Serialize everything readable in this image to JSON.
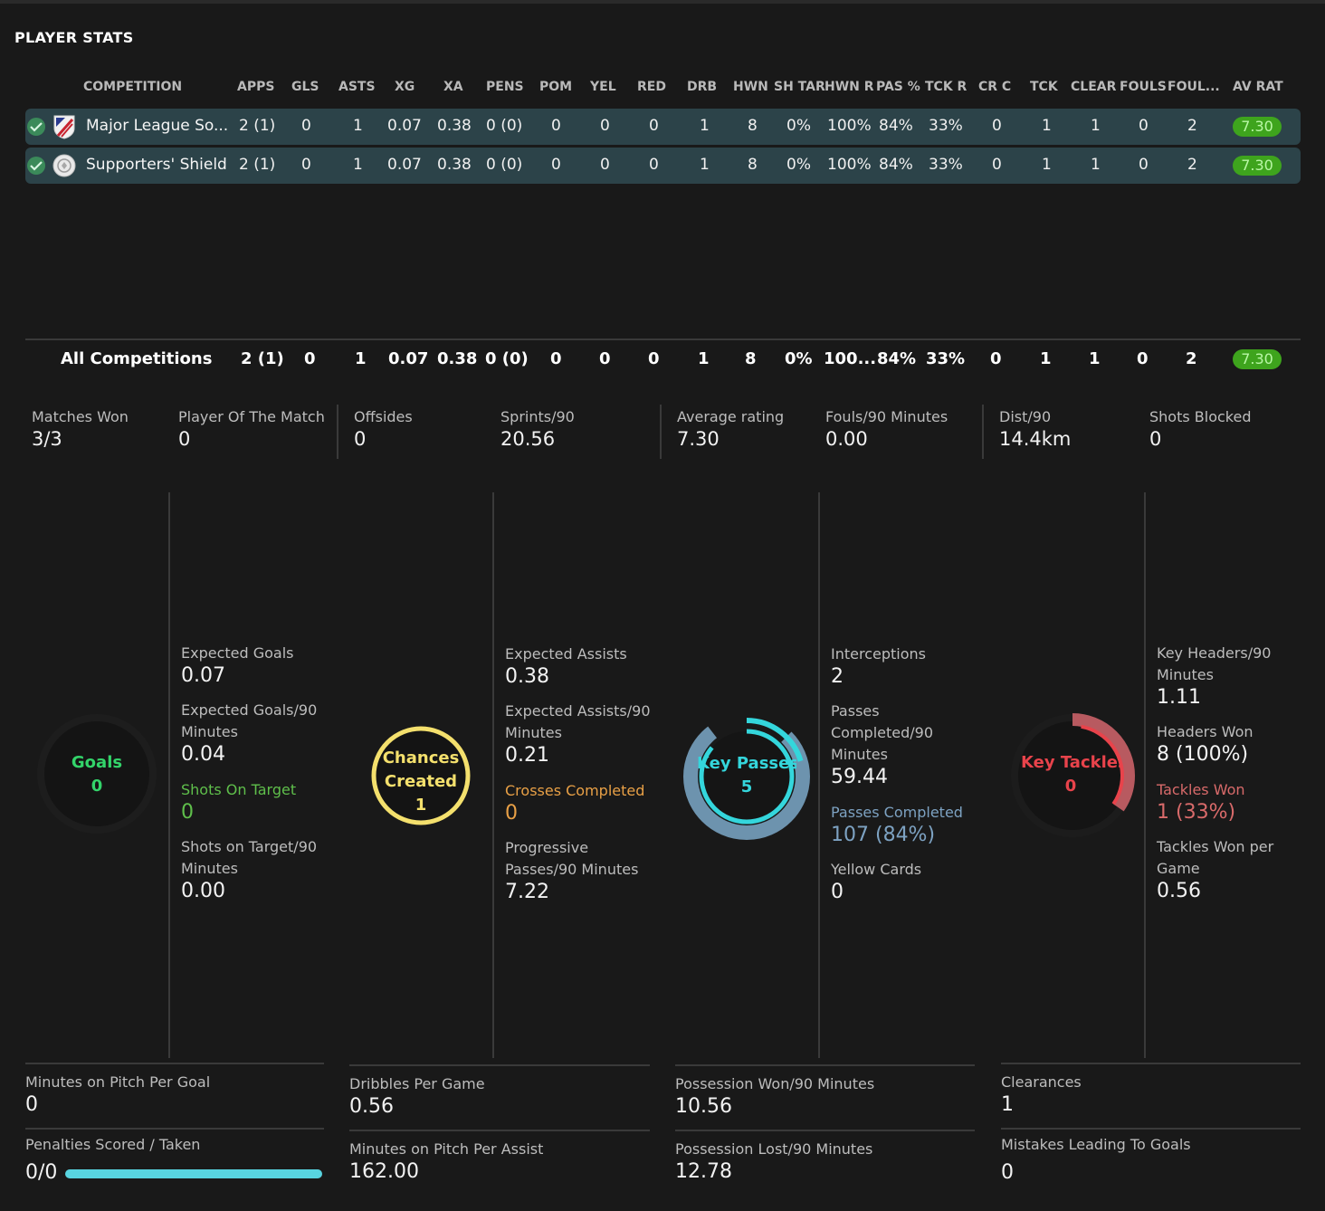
{
  "title": "PLAYER STATS",
  "columns": [
    "COMPETITION",
    "APPS",
    "GLS",
    "ASTS",
    "XG",
    "XA",
    "PENS",
    "POM",
    "YEL",
    "RED",
    "DRB",
    "HWN",
    "SH TAR",
    "HWN R",
    "PAS %",
    "TCK R",
    "CR C",
    "TCK",
    "CLEAR",
    "FOULS",
    "FOUL...",
    "AV RAT"
  ],
  "rows": [
    {
      "name": "Major League So...",
      "values": [
        "2 (1)",
        "0",
        "1",
        "0.07",
        "0.38",
        "0 (0)",
        "0",
        "0",
        "0",
        "1",
        "8",
        "0%",
        "100%",
        "84%",
        "33%",
        "0",
        "1",
        "1",
        "0",
        "2"
      ],
      "rating": "7.30"
    },
    {
      "name": "Supporters' Shield",
      "values": [
        "2 (1)",
        "0",
        "1",
        "0.07",
        "0.38",
        "0 (0)",
        "0",
        "0",
        "0",
        "1",
        "8",
        "0%",
        "100%",
        "84%",
        "33%",
        "0",
        "1",
        "1",
        "0",
        "2"
      ],
      "rating": "7.30"
    }
  ],
  "totals": {
    "name": "All Competitions",
    "values": [
      "2 (1)",
      "0",
      "1",
      "0.07",
      "0.38",
      "0 (0)",
      "0",
      "0",
      "0",
      "1",
      "8",
      "0%",
      "100...",
      "84%",
      "33%",
      "0",
      "1",
      "1",
      "0",
      "2"
    ],
    "rating": "7.30"
  },
  "summary": [
    {
      "label": "Matches Won",
      "value": "3/3"
    },
    {
      "label": "Player Of The Match",
      "value": "0"
    },
    {
      "label": "Offsides",
      "value": "0"
    },
    {
      "label": "Sprints/90",
      "value": "20.56"
    },
    {
      "label": "Average rating",
      "value": "7.30"
    },
    {
      "label": "Fouls/90 Minutes",
      "value": "0.00"
    },
    {
      "label": "Dist/90",
      "value": "14.4km"
    },
    {
      "label": "Shots Blocked",
      "value": "0"
    }
  ],
  "panels": {
    "goals": {
      "label": "Goals",
      "value": "0",
      "stats": [
        {
          "label": "Expected Goals",
          "value": "0.07"
        },
        {
          "label": "Expected Goals/90 Minutes",
          "value": "0.04"
        },
        {
          "label": "Shots On Target",
          "value": "0"
        },
        {
          "label": "Shots on Target/90 Minutes",
          "value": "0.00"
        }
      ],
      "bottom": [
        {
          "label": "Minutes on Pitch Per Goal",
          "value": "0"
        },
        {
          "label": "Penalties Scored / Taken",
          "value": "0/0",
          "fill": 1.0
        }
      ]
    },
    "chances": {
      "label1": "Chances",
      "label2": "Created",
      "value": "1",
      "stats": [
        {
          "label": "Expected Assists",
          "value": "0.38"
        },
        {
          "label": "Expected Assists/90 Minutes",
          "value": "0.21"
        },
        {
          "label": "Crosses Completed",
          "value": "0"
        },
        {
          "label": "Progressive Passes/90 Minutes",
          "value": "7.22"
        }
      ],
      "bottom": [
        {
          "label": "Dribbles Per Game",
          "value": "0.56"
        },
        {
          "label": "Minutes on Pitch Per Assist",
          "value": "162.00"
        }
      ]
    },
    "keypasses": {
      "label": "Key Passes",
      "value": "5",
      "stats": [
        {
          "label": "Interceptions",
          "value": "2"
        },
        {
          "label": "Passes Completed/90 Minutes",
          "value": "59.44"
        },
        {
          "label": "Passes Completed",
          "value": "107 (84%)"
        },
        {
          "label": "Yellow Cards",
          "value": "0"
        }
      ],
      "bottom": [
        {
          "label": "Possession Won/90 Minutes",
          "value": "10.56"
        },
        {
          "label": "Possession Lost/90 Minutes",
          "value": "12.78"
        }
      ]
    },
    "keytackles": {
      "label": "Key Tackles",
      "value": "0",
      "stats": [
        {
          "label": "Key Headers/90 Minutes",
          "value": "1.11"
        },
        {
          "label": "Headers Won",
          "value": "8 (100%)"
        },
        {
          "label": "Tackles Won",
          "value": "1 (33%)"
        },
        {
          "label": "Tackles Won per Game",
          "value": "0.56"
        }
      ],
      "bottom": [
        {
          "label": "Clearances",
          "value": "1"
        },
        {
          "label": "Mistakes Leading To Goals",
          "value": "0"
        }
      ]
    }
  },
  "colors": {
    "rating": "#3ea41d",
    "row": "#2c4349",
    "bar": "#58d4e0",
    "goals": "#33d46a",
    "chances": "#f4e06d",
    "keypasses": "#34d6dc",
    "keytackles": "#e8434b"
  }
}
